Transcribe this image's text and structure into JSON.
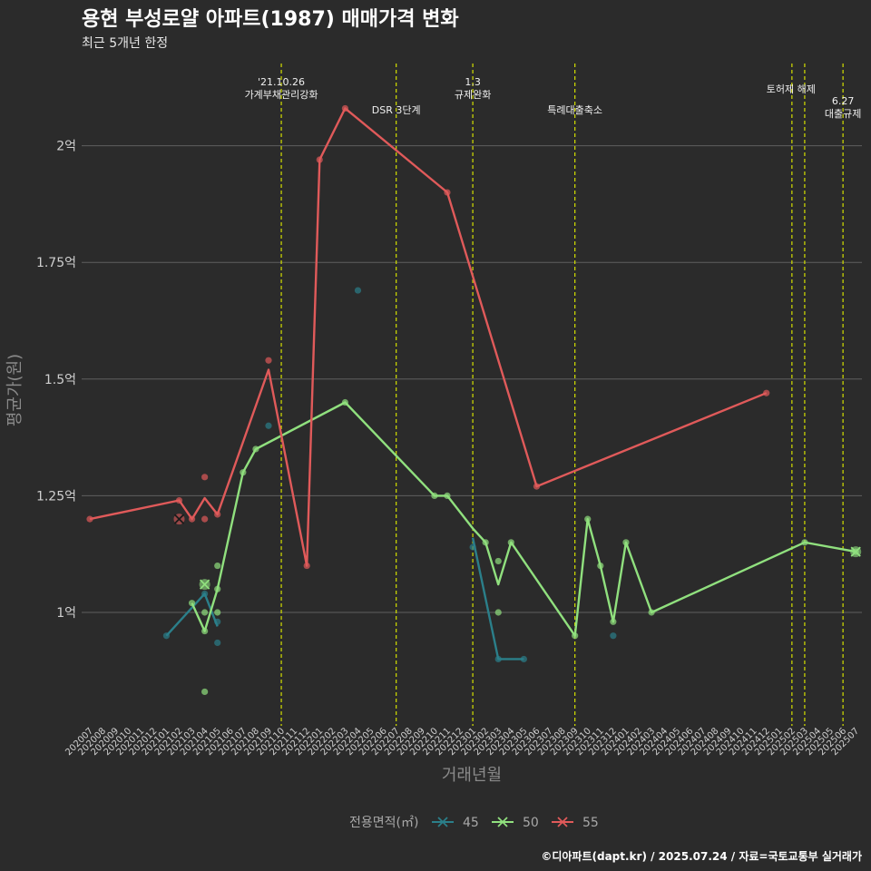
{
  "chart_data": {
    "type": "line",
    "title": "용현 부성로얄 아파트(1987) 매매가격 변화",
    "subtitle": "최근 5개년 한정",
    "xlabel": "거래년월",
    "ylabel": "평균가(원)",
    "caption": "©디아파트(dapt.kr) / 2025.07.24 / 자료=국토교통부 실거래가",
    "categories": [
      "202007",
      "202008",
      "202009",
      "202010",
      "202011",
      "202012",
      "202101",
      "202102",
      "202103",
      "202104",
      "202105",
      "202106",
      "202107",
      "202108",
      "202109",
      "202110",
      "202111",
      "202112",
      "202201",
      "202202",
      "202203",
      "202204",
      "202205",
      "202206",
      "202207",
      "202208",
      "202209",
      "202210",
      "202211",
      "202212",
      "202301",
      "202302",
      "202303",
      "202304",
      "202305",
      "202306",
      "202307",
      "202308",
      "202309",
      "202310",
      "202311",
      "202312",
      "202401",
      "202402",
      "202403",
      "202404",
      "202405",
      "202406",
      "202407",
      "202408",
      "202409",
      "202410",
      "202411",
      "202412",
      "202501",
      "202502",
      "202503",
      "202504",
      "202505",
      "202506",
      "202507"
    ],
    "y_ticks": [
      1.0,
      1.25,
      1.5,
      1.75,
      2.0
    ],
    "y_tick_labels": [
      "1억",
      "1.25억",
      "1.5억",
      "1.75억",
      "2억"
    ],
    "ylim": [
      0.77,
      2.2
    ],
    "grid": true,
    "legend": {
      "title": "전용면적(㎡)",
      "position": "bottom",
      "entries": [
        "45",
        "50",
        "55"
      ]
    },
    "series": [
      {
        "name": "45",
        "color": "#2b7f8a",
        "line": [
          [
            "202101",
            0.95
          ],
          [
            "202104",
            1.04
          ],
          [
            "202105",
            0.97
          ]
        ],
        "line2": [
          [
            "202301",
            1.16
          ],
          [
            "202303",
            0.9
          ],
          [
            "202305",
            0.9
          ]
        ],
        "points": [
          [
            "202101",
            0.95
          ],
          [
            "202104",
            1.04
          ],
          [
            "202105",
            0.98
          ],
          [
            "202105",
            0.935
          ],
          [
            "202109",
            1.4
          ],
          [
            "202204",
            1.69
          ],
          [
            "202301",
            1.14
          ],
          [
            "202303",
            0.9
          ],
          [
            "202305",
            0.9
          ],
          [
            "202312",
            0.95
          ]
        ],
        "last_marker": [
          "202104",
          1.04
        ]
      },
      {
        "name": "50",
        "color": "#90e07e",
        "line": [
          [
            "202103",
            1.02
          ],
          [
            "202104",
            0.96
          ],
          [
            "202105",
            1.05
          ],
          [
            "202107",
            1.3
          ],
          [
            "202108",
            1.35
          ],
          [
            "202203",
            1.45
          ],
          [
            "202210",
            1.25
          ],
          [
            "202211",
            1.25
          ],
          [
            "202301",
            1.18
          ],
          [
            "202302",
            1.15
          ],
          [
            "202303",
            1.06
          ],
          [
            "202304",
            1.15
          ],
          [
            "202309",
            0.95
          ],
          [
            "202310",
            1.2
          ],
          [
            "202311",
            1.1
          ],
          [
            "202312",
            0.98
          ],
          [
            "202401",
            1.15
          ],
          [
            "202403",
            1.0
          ],
          [
            "202503",
            1.15
          ],
          [
            "202507",
            1.13
          ]
        ],
        "points": [
          [
            "202103",
            1.02
          ],
          [
            "202104",
            0.96
          ],
          [
            "202104",
            1.0
          ],
          [
            "202104",
            0.83
          ],
          [
            "202105",
            1.05
          ],
          [
            "202105",
            1.1
          ],
          [
            "202105",
            1.0
          ],
          [
            "202107",
            1.3
          ],
          [
            "202108",
            1.35
          ],
          [
            "202203",
            1.45
          ],
          [
            "202210",
            1.25
          ],
          [
            "202211",
            1.25
          ],
          [
            "202302",
            1.15
          ],
          [
            "202303",
            1.11
          ],
          [
            "202303",
            1.0
          ],
          [
            "202304",
            1.15
          ],
          [
            "202309",
            0.95
          ],
          [
            "202310",
            1.2
          ],
          [
            "202311",
            1.1
          ],
          [
            "202312",
            0.98
          ],
          [
            "202401",
            1.15
          ],
          [
            "202403",
            1.0
          ],
          [
            "202503",
            1.15
          ],
          [
            "202507",
            1.13
          ]
        ],
        "x_markers": [
          [
            "202104",
            1.06
          ],
          [
            "202507",
            1.13
          ]
        ]
      },
      {
        "name": "55",
        "color": "#e05a5a",
        "line": [
          [
            "202007",
            1.2
          ],
          [
            "202102",
            1.24
          ],
          [
            "202103",
            1.2
          ],
          [
            "202104",
            1.245
          ],
          [
            "202105",
            1.21
          ],
          [
            "202109",
            1.52
          ],
          [
            "202112",
            1.1
          ],
          [
            "202201",
            1.97
          ],
          [
            "202203",
            2.08
          ],
          [
            "202211",
            1.9
          ],
          [
            "202306",
            1.27
          ],
          [
            "202412",
            1.47
          ]
        ],
        "points": [
          [
            "202007",
            1.2
          ],
          [
            "202102",
            1.24
          ],
          [
            "202103",
            1.2
          ],
          [
            "202104",
            1.29
          ],
          [
            "202104",
            1.2
          ],
          [
            "202105",
            1.21
          ],
          [
            "202109",
            1.54
          ],
          [
            "202112",
            1.1
          ],
          [
            "202201",
            1.97
          ],
          [
            "202203",
            2.08
          ],
          [
            "202211",
            1.9
          ],
          [
            "202306",
            1.27
          ],
          [
            "202412",
            1.47
          ]
        ],
        "x_markers": [
          [
            "202102",
            1.2
          ]
        ]
      }
    ],
    "events": [
      {
        "month": "202110",
        "label": [
          "'21.10.26",
          "가계부채관리강화"
        ],
        "row": "top"
      },
      {
        "month": "202207",
        "label": [
          "DSR 3단계"
        ],
        "row": "low"
      },
      {
        "month": "202301",
        "label": [
          "1.3",
          "규제완화"
        ],
        "row": "top"
      },
      {
        "month": "202309",
        "label": [
          "특례대출축소"
        ],
        "row": "low"
      },
      {
        "month": "202502",
        "label": [
          "토허제 해제"
        ],
        "row": "mid"
      },
      {
        "month": "202503",
        "label": [],
        "row": "mid"
      },
      {
        "month": "202506",
        "label": [
          "6.27",
          "대출규제"
        ],
        "row": "right"
      }
    ],
    "event_line_color": "#d4e000"
  }
}
